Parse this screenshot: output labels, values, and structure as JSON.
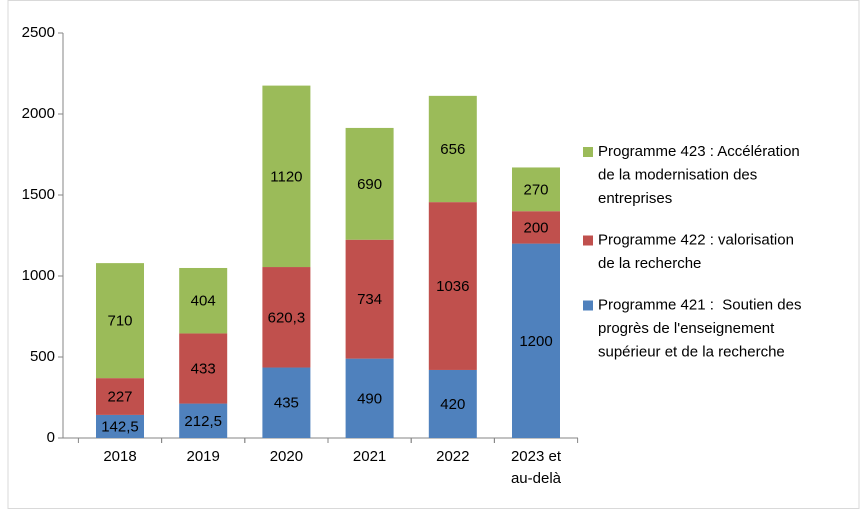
{
  "chart_data": {
    "type": "stacked_bar",
    "categories": [
      "2018",
      "2019",
      "2020",
      "2021",
      "2022",
      "2023 et au-delà"
    ],
    "series": [
      {
        "name": "Programme 421 :  Soutien des progrès de l'enseignement supérieur et de la recherche",
        "color": "#4f81bd",
        "values": [
          142.5,
          212.5,
          435,
          490,
          420,
          1200
        ],
        "value_labels": [
          "142,5",
          "212,5",
          "435",
          "490",
          "420",
          "1200"
        ]
      },
      {
        "name": "Programme 422 : valorisation de la recherche",
        "color": "#c0504d",
        "values": [
          227,
          433,
          620.3,
          734,
          1036,
          200
        ],
        "value_labels": [
          "227",
          "433",
          "620,3",
          "734",
          "1036",
          "200"
        ]
      },
      {
        "name": "Programme 423 : Accélération de la modernisation des entreprises",
        "color": "#9bbb59",
        "values": [
          710,
          404,
          1120,
          690,
          656,
          270
        ]
      }
    ],
    "ylim": [
      0,
      2500
    ],
    "yticks": [
      0,
      500,
      1000,
      1500,
      2000,
      2500
    ],
    "legend": "right"
  }
}
